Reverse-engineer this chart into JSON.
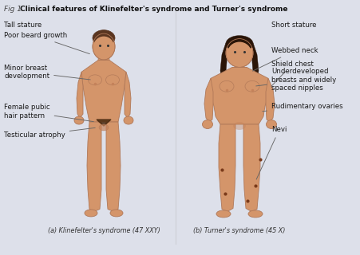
{
  "title_prefix": "Fig 1 ",
  "title_bold": "Clinical features of Klinefelter's syndrome and Turner's syndrome",
  "bg_color": "#dde0ea",
  "body_bg": "#f0f0f0",
  "skin_color": "#d4956a",
  "skin_shadow": "#c4825a",
  "hair_color_k": "#5a3520",
  "hair_color_t": "#2a1508",
  "outline_color": "#b07858",
  "label_color": "#1a1a1a",
  "line_color": "#666666",
  "caption_a": "(a) Klinefelter's syndrome (47 XXY)",
  "caption_b": "(b) Turner's syndrome (45 X)"
}
